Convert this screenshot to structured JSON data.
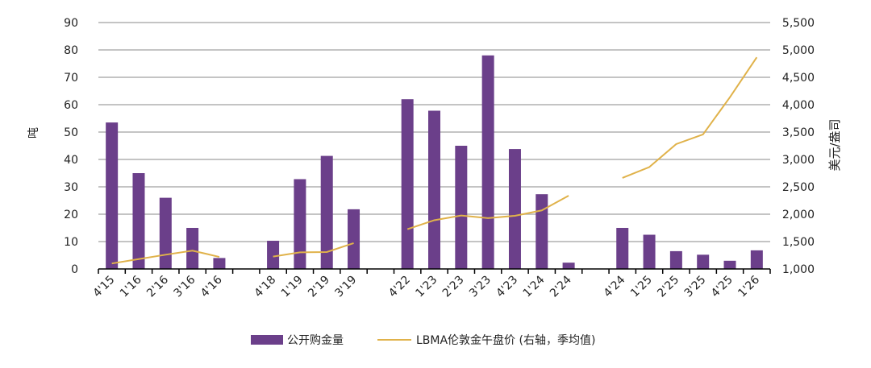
{
  "chart_data": {
    "type": "bar+line",
    "categories": [
      "4'15",
      "1'16",
      "2'16",
      "3'16",
      "4'16",
      "",
      "4'18",
      "1'19",
      "2'19",
      "3'19",
      "",
      "4'22",
      "1'23",
      "2'23",
      "3'23",
      "4'23",
      "1'24",
      "2'24",
      "",
      "4'24",
      "1'25",
      "2'25",
      "3'25",
      "4'25",
      "1'26"
    ],
    "series": [
      {
        "name": "公开购金量",
        "type": "bar",
        "axis": "left",
        "color": "#6b3f8a",
        "values": [
          53.5,
          35,
          26,
          15,
          4,
          null,
          10.3,
          32.8,
          41.3,
          21.8,
          null,
          62,
          57.8,
          45,
          78,
          43.8,
          27.3,
          2.3,
          null,
          15,
          12.5,
          6.5,
          5.2,
          3,
          6.8
        ]
      },
      {
        "name": "LBMA伦敦金午盘价 (右轴，季均值)",
        "type": "line",
        "axis": "right",
        "color": "#e0b24a",
        "values": [
          1100,
          1180,
          1260,
          1335,
          1220,
          null,
          1226,
          1304,
          1309,
          1472,
          null,
          1726,
          1890,
          1976,
          1928,
          1971,
          2070,
          2338,
          null,
          2663,
          2860,
          3280,
          3457,
          4135,
          4865
        ]
      }
    ],
    "ylabel": "吨",
    "ylim": [
      0,
      90
    ],
    "yticks": [
      "0",
      "10",
      "20",
      "30",
      "40",
      "50",
      "60",
      "70",
      "80",
      "90"
    ],
    "y2label": "美元/盎司",
    "y2lim": [
      1000,
      5500
    ],
    "y2ticks": [
      "1,000",
      "1,500",
      "2,000",
      "2,500",
      "3,000",
      "3,500",
      "4,000",
      "4,500",
      "5,000",
      "5,500"
    ],
    "grid": true,
    "legend_position": "bottom"
  }
}
